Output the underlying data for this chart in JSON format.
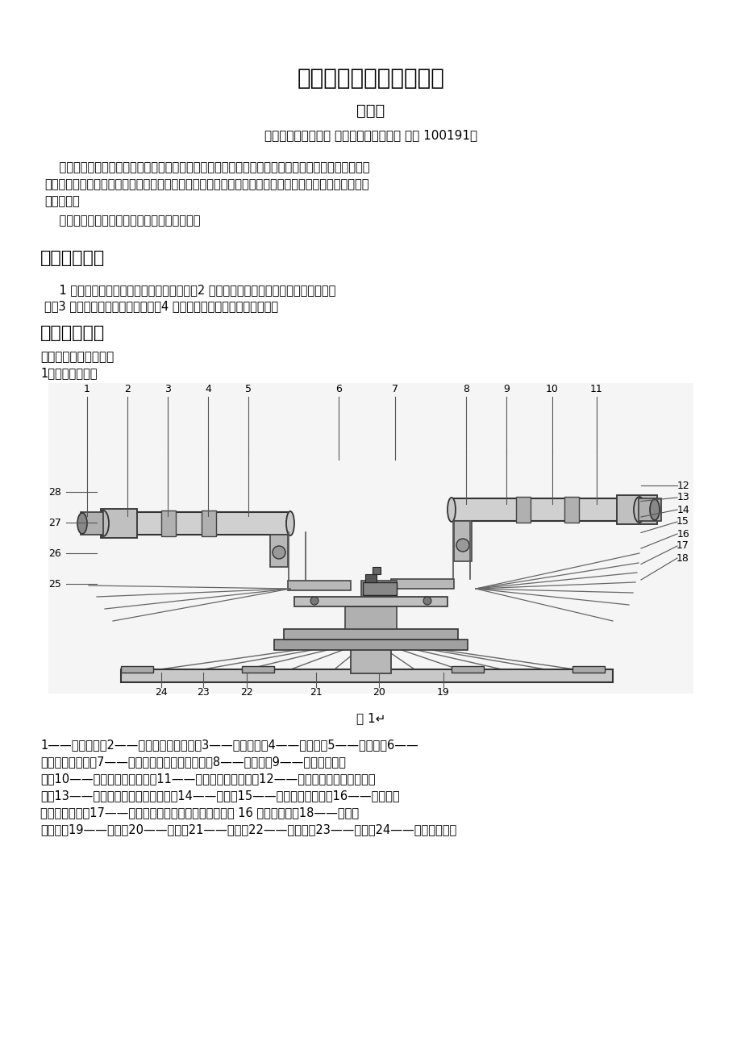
{
  "bg_color": "#ffffff",
  "title": "基础物理研究性实验报告",
  "author": "廖瑞杰",
  "affiliation": "（北京航空航天大学 能源与动力工程学院 北京 100191）",
  "abstract_line1": "    摘要：本文以分光仪的调整和应用为主题，分别对实验的原理和步骤进行了总结和分析，对实验过程",
  "abstract_line2": "的注意事项进行了概括，对实验测得的数据进行了详细的分析和计算。最后附予的对实验的心得感想以及",
  "abstract_line3": "改进建议。",
  "keywords_line": "    关键字：分光仪；三棱镜顶角；三棱镜折射率",
  "section1_title": "一、实验重点",
  "section1_line1": "    1 了解分光仪的构造及其主要部件的作用。2 学习并掌握分光仪德的调节原理与调节方",
  "section1_line2": "法。3 掌握自准直法和逐次逼近法。4 学会用干涉法测量三棱镜的顶角。",
  "section2_title": "二、实验原理",
  "section2_sub1": "实验一、分光仪的调整",
  "section2_sub2": "1、分光仪的结构",
  "fig_caption": "图 1↵",
  "desc_line1": "1——狭缝套筒；2——狭缝套筒锁紧螺钉；3——平行光管；4——制动架；5——载物台；6——",
  "desc_line2": "载物台调平螺钉；7——载物台与游标盘联结螺钉；8——望远镜；9——望远镜锁紧螺",
  "desc_line3": "钉；10——阿贝式自准直目镜；11——目镜视度调节手轮；12——一望远镜光轴俯仰调节螺",
  "desc_line4": "钉；13——望远镜光轴水平调节螺钉；14——支臂；15——望远镜微调螺钉；16——望远镜与",
  "desc_line5": "度盘联结螺钉；17——望远镜固紧螺钉（位于图后与螺钉 16 对称位置）；18——制动架",
  "desc_line6": "（一）；19——底座；20——转座；21——度盘；22——游标盘；23——立柱；24——一游标盘微调",
  "label_top": [
    "1",
    "2",
    "3",
    "4",
    "5",
    "6",
    "7",
    "8",
    "9",
    "10",
    "11"
  ],
  "label_top_x": [
    108,
    158,
    208,
    258,
    308,
    420,
    490,
    578,
    628,
    685,
    740
  ],
  "label_right": [
    "12",
    "13",
    "14",
    "15",
    "16",
    "17",
    "18"
  ],
  "label_left_nums": [
    "28",
    "27",
    "26",
    "25"
  ],
  "label_bottom": [
    "24",
    "23",
    "22",
    "21",
    "20",
    "19"
  ],
  "label_bottom_x": [
    200,
    252,
    306,
    392,
    470,
    550
  ]
}
